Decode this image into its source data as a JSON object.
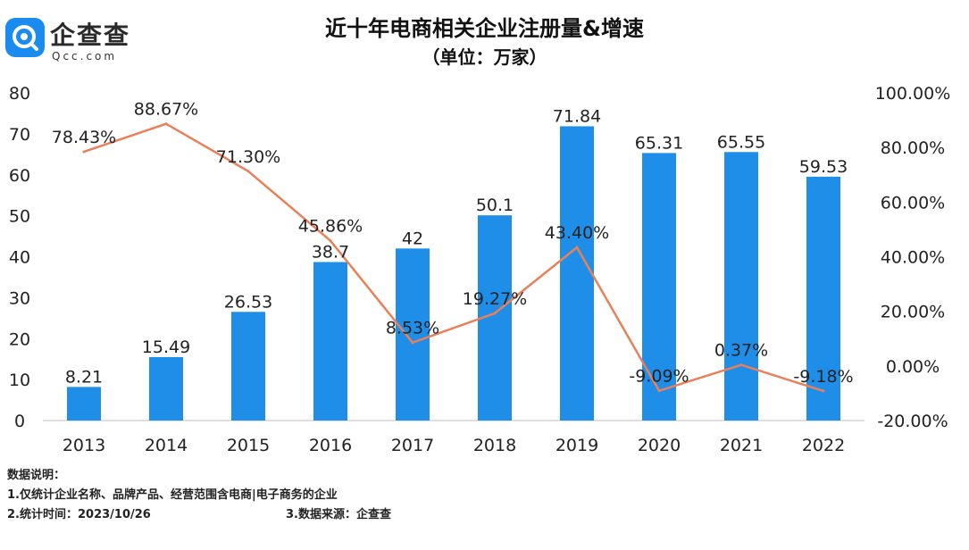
{
  "logo": {
    "name": "企查查",
    "domain": "Qcc.com"
  },
  "title": "近十年电商相关企业注册量&增速",
  "subtitle": "（单位：万家）",
  "chart_data": {
    "type": "bar",
    "categories": [
      "2013",
      "2014",
      "2015",
      "2016",
      "2017",
      "2018",
      "2019",
      "2020",
      "2021",
      "2022"
    ],
    "series": [
      {
        "type": "bar",
        "values": [
          8.21,
          15.49,
          26.53,
          38.7,
          42,
          50.1,
          71.84,
          65.31,
          65.55,
          59.53
        ],
        "labels": [
          "8.21",
          "15.49",
          "26.53",
          "38.7",
          "42",
          "50.1",
          "71.84",
          "65.31",
          "65.55",
          "59.53"
        ],
        "axis": "left"
      },
      {
        "type": "line",
        "values": [
          78.43,
          88.67,
          71.3,
          45.86,
          8.53,
          19.27,
          43.4,
          -9.09,
          0.37,
          -9.18
        ],
        "labels": [
          "78.43%",
          "88.67%",
          "71.30%",
          "45.86%",
          "8.53%",
          "19.27%",
          "43.40%",
          "-9.09%",
          "0.37%",
          "-9.18%"
        ],
        "axis": "right"
      }
    ],
    "left_axis": {
      "ylim": [
        0,
        80
      ],
      "ticks": [
        "0",
        "10",
        "20",
        "30",
        "40",
        "50",
        "60",
        "70",
        "80"
      ]
    },
    "right_axis": {
      "ylim": [
        -20,
        100
      ],
      "ticks": [
        "-20.00%",
        "0.00%",
        "20.00%",
        "40.00%",
        "60.00%",
        "80.00%",
        "100.00%"
      ]
    },
    "colors": {
      "bar": "#1f8ee8",
      "line": "#e8815a",
      "axis": "#bfbfbf",
      "text": "#222222"
    },
    "grid": false
  },
  "notes": {
    "heading": "数据说明：",
    "line1": "1.仅统计企业名称、品牌产品、经营范围含电商|电子商务的企业",
    "time": "2.统计时间：2023/10/26",
    "source": "3.数据来源：企查查"
  }
}
